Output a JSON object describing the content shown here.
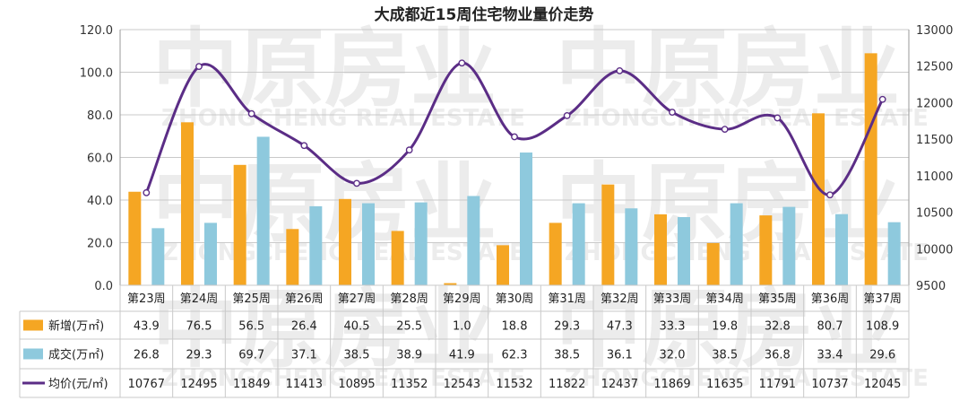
{
  "chart_data": {
    "type": "bar",
    "title": "大成都近15周住宅物业量价走势",
    "categories": [
      "第23周",
      "第24周",
      "第25周",
      "第26周",
      "第27周",
      "第28周",
      "第29周",
      "第30周",
      "第31周",
      "第32周",
      "第33周",
      "第34周",
      "第35周",
      "第36周",
      "第37周"
    ],
    "series": [
      {
        "name": "新增(万㎡)",
        "type": "bar",
        "axis": "left",
        "color": "#f5a623",
        "values": [
          43.9,
          76.5,
          56.5,
          26.4,
          40.5,
          25.5,
          1.0,
          18.8,
          29.3,
          47.3,
          33.3,
          19.8,
          32.8,
          80.7,
          108.9
        ],
        "labels": [
          "43.9",
          "76.5",
          "56.5",
          "26.4",
          "40.5",
          "25.5",
          "1.0",
          "18.8",
          "29.3",
          "47.3",
          "33.3",
          "19.8",
          "32.8",
          "80.7",
          "108.9"
        ]
      },
      {
        "name": "成交(万㎡)",
        "type": "bar",
        "axis": "left",
        "color": "#8ec9dd",
        "values": [
          26.8,
          29.3,
          69.7,
          37.1,
          38.5,
          38.9,
          41.9,
          62.3,
          38.5,
          36.1,
          32.0,
          38.5,
          36.8,
          33.4,
          29.6
        ],
        "labels": [
          "26.8",
          "29.3",
          "69.7",
          "37.1",
          "38.5",
          "38.9",
          "41.9",
          "62.3",
          "38.5",
          "36.1",
          "32.0",
          "38.5",
          "36.8",
          "33.4",
          "29.6"
        ]
      },
      {
        "name": "均价(元/㎡)",
        "type": "line",
        "axis": "right",
        "color": "#5b2d86",
        "values": [
          10767,
          12495,
          11849,
          11413,
          10895,
          11352,
          12543,
          11532,
          11822,
          12437,
          11869,
          11635,
          11791,
          10737,
          12045
        ],
        "labels": [
          "10767",
          "12495",
          "11849",
          "11413",
          "10895",
          "11352",
          "12543",
          "11532",
          "11822",
          "12437",
          "11869",
          "11635",
          "11791",
          "10737",
          "12045"
        ]
      }
    ],
    "y_left": {
      "ylim": [
        0,
        120
      ],
      "ticks": [
        0,
        20,
        40,
        60,
        80,
        100,
        120
      ],
      "tick_labels": [
        "0.0",
        "20.0",
        "40.0",
        "60.0",
        "80.0",
        "100.0",
        "120.0"
      ]
    },
    "y_right": {
      "ylim": [
        9500,
        13000
      ],
      "ticks": [
        9500,
        10000,
        10500,
        11000,
        11500,
        12000,
        12500,
        13000
      ],
      "tick_labels": [
        "9500",
        "10000",
        "10500",
        "11000",
        "11500",
        "12000",
        "12500",
        "13000"
      ]
    },
    "grid": true,
    "legend": "data-table-left",
    "watermark": {
      "cn": "中原房业",
      "en": "ZHONGCHENG REAL ESTATE",
      "color": "#ececec"
    }
  }
}
